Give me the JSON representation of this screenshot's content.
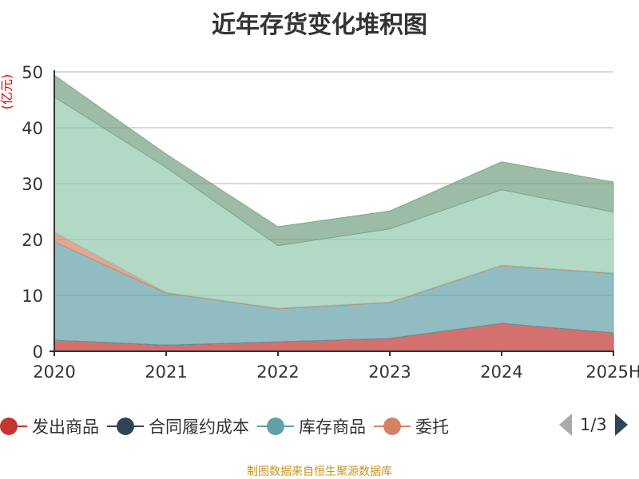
{
  "title": "近年存货变化堆积图",
  "footer": "制图数据来自恒生聚源数据库",
  "legend": {
    "page": "1/3",
    "items": [
      {
        "label": "发出商品",
        "color": "#c23531"
      },
      {
        "label": "合同履约成本",
        "color": "#2f4554"
      },
      {
        "label": "库存商品",
        "color": "#61a0a8"
      },
      {
        "label": "委托",
        "color": "#d48265"
      }
    ]
  },
  "chart_data": {
    "type": "area",
    "stacked": true,
    "title": "近年存货变化堆积图",
    "ylabel": "(亿元)",
    "xlabel": "",
    "categories": [
      "2020",
      "2021",
      "2022",
      "2023",
      "2024",
      "2025H"
    ],
    "ylim": [
      0,
      50
    ],
    "yticks": [
      0,
      10,
      20,
      30,
      40,
      50
    ],
    "grid": true,
    "legend_position": "bottom",
    "series": [
      {
        "name": "发出商品",
        "color": "#c23531",
        "values": [
          2.0,
          1.1,
          1.7,
          2.3,
          5.0,
          3.3
        ]
      },
      {
        "name": "合同履约成本",
        "color": "#2f4554",
        "values": [
          0,
          0,
          0,
          0,
          0,
          0
        ]
      },
      {
        "name": "库存商品",
        "color": "#61a0a8",
        "values": [
          17.6,
          9.3,
          5.9,
          6.4,
          10.3,
          10.6
        ]
      },
      {
        "name": "委托",
        "color": "#d48265",
        "values": [
          1.7,
          0.1,
          0.1,
          0.1,
          0.1,
          0.1
        ]
      },
      {
        "color": "#91c7ae",
        "values": [
          24.2,
          22.4,
          11.2,
          13.1,
          13.5,
          10.9
        ]
      },
      {
        "color": "#749f83",
        "values": [
          3.9,
          2.4,
          3.4,
          3.2,
          5.0,
          5.4
        ]
      }
    ]
  }
}
